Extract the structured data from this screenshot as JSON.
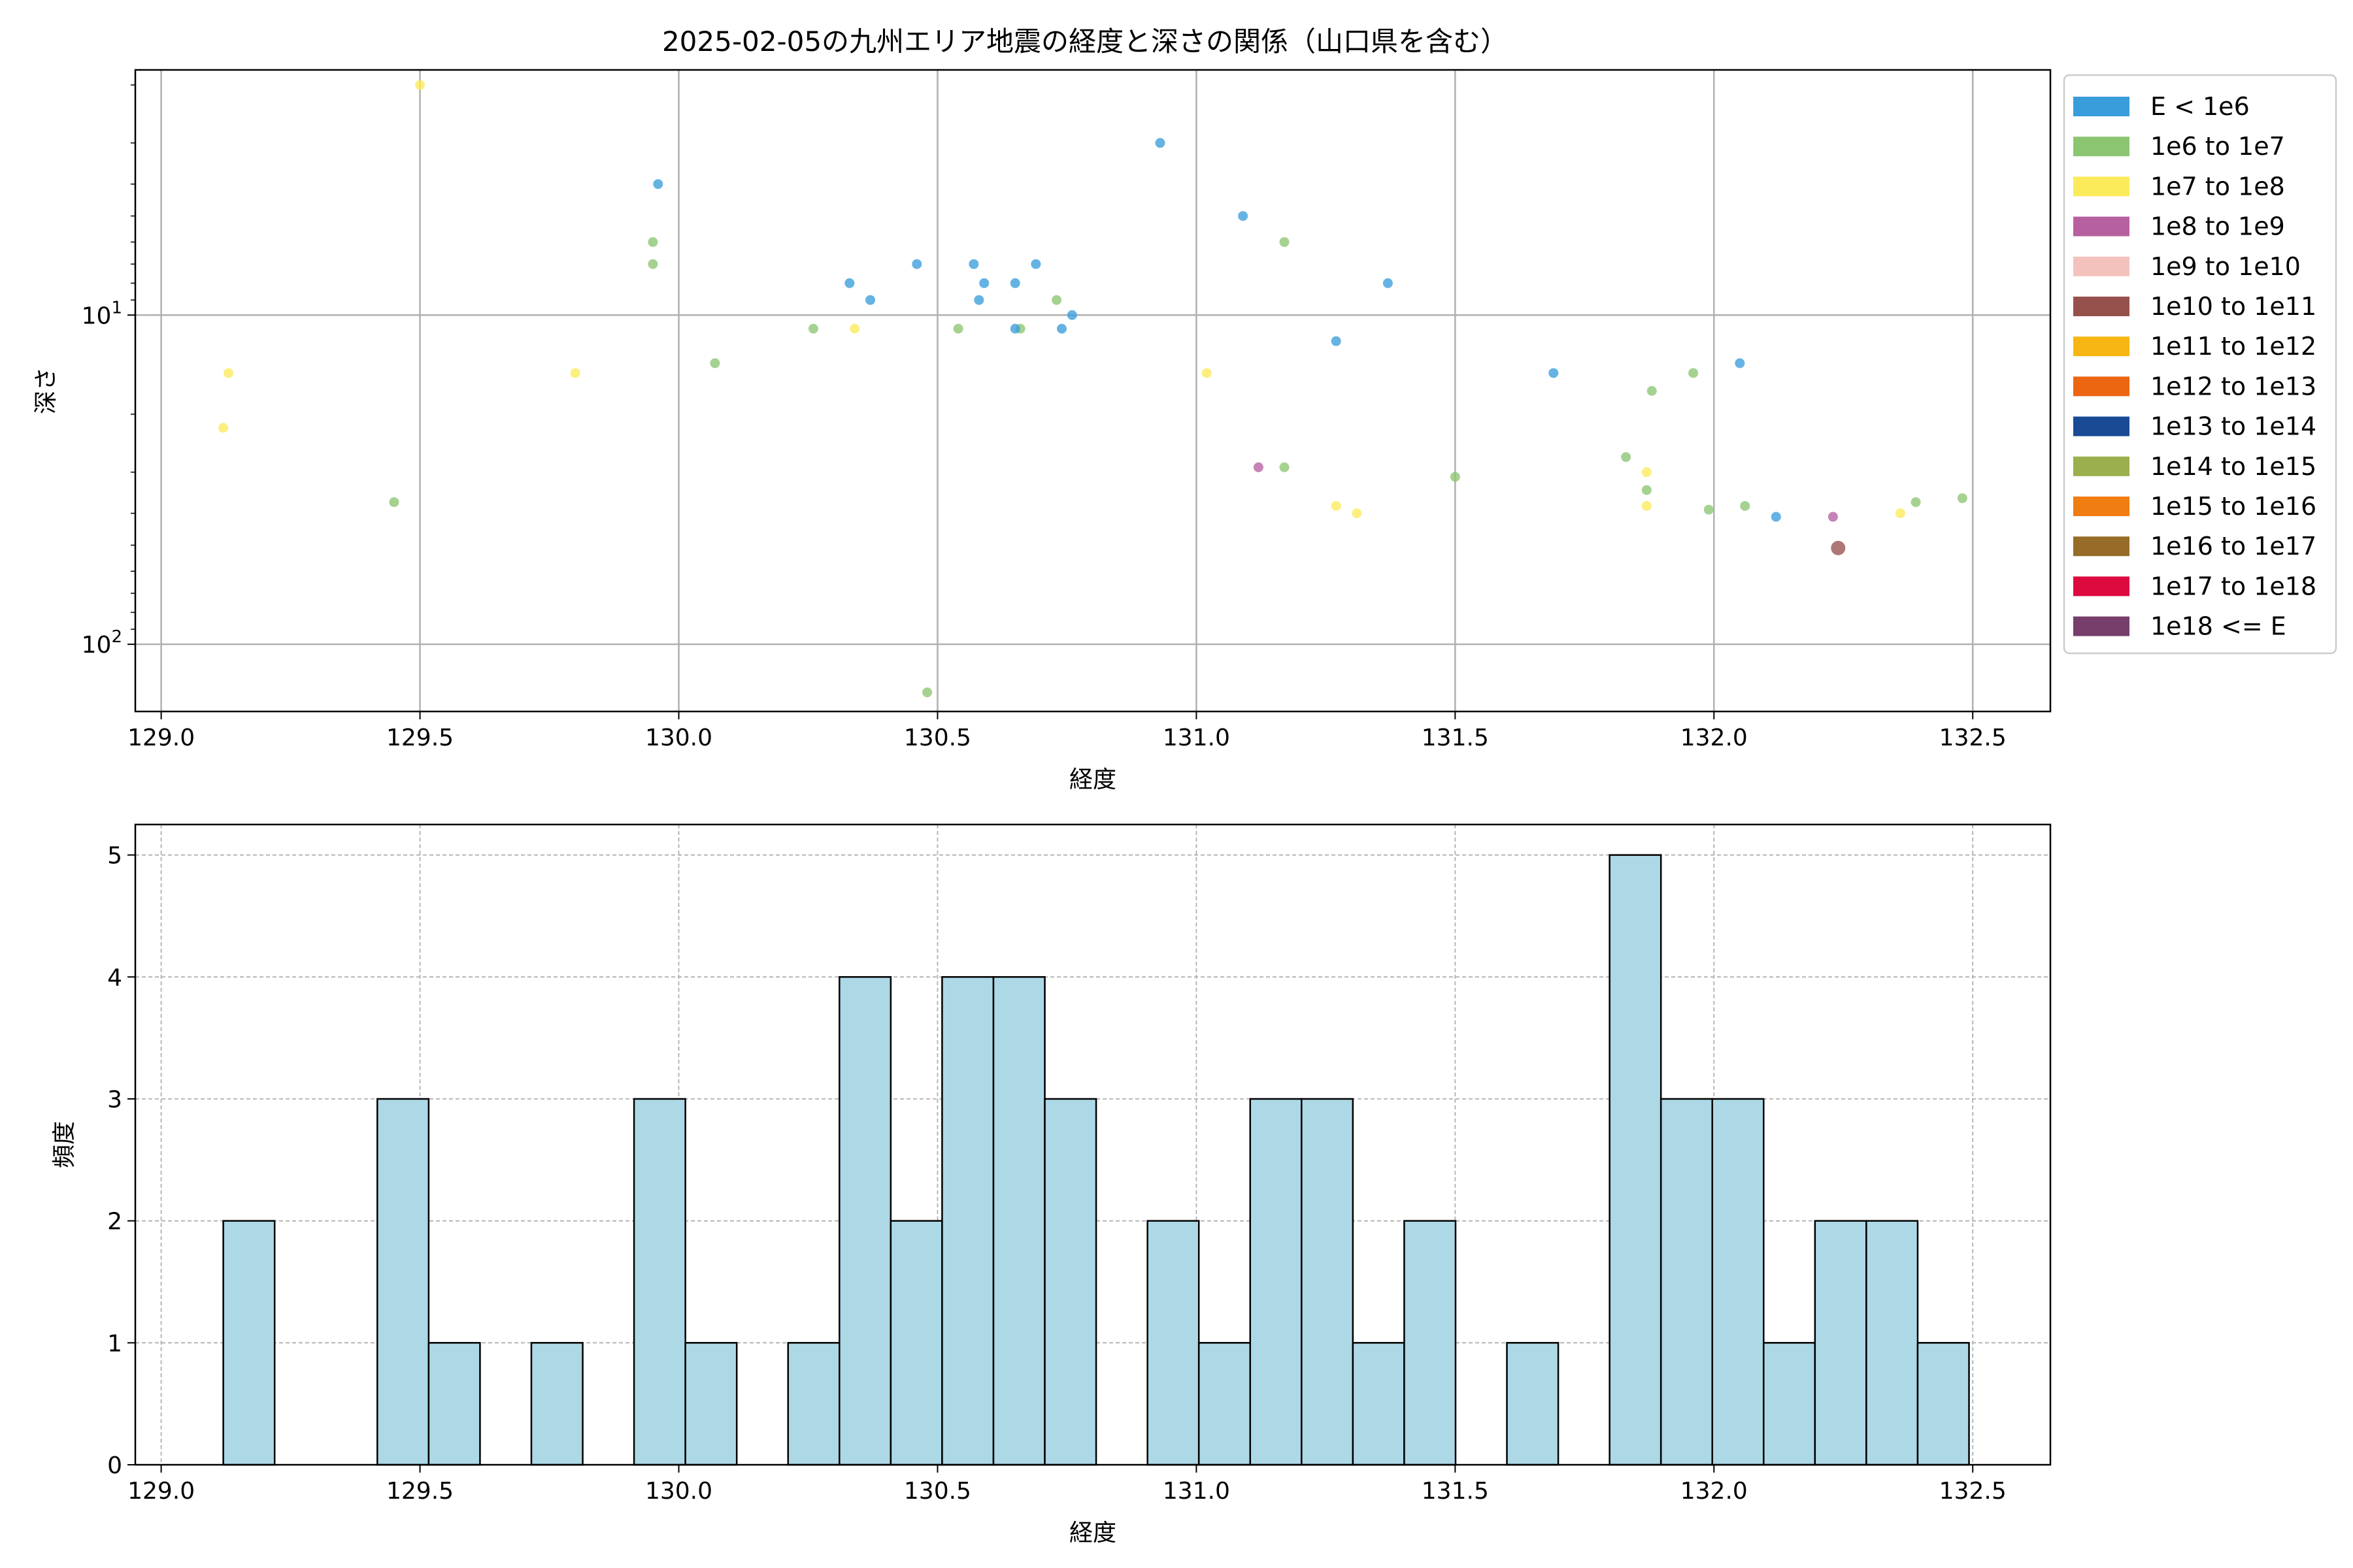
{
  "chart_data": [
    {
      "type": "scatter",
      "title": "2025-02-05の九州エリア地震の経度と深さの関係（山口県を含む）",
      "xlabel": "経度",
      "ylabel": "深さ",
      "xlim": [
        128.95,
        132.65
      ],
      "ylim": [
        160,
        1.8
      ],
      "yscale": "log",
      "y_inverted": true,
      "grid": true,
      "legend_position": "outside-right",
      "xticks": [
        "129.0",
        "129.5",
        "130.0",
        "130.5",
        "131.0",
        "131.5",
        "132.0",
        "132.5"
      ],
      "yticks": [
        {
          "value": 10,
          "base": "10",
          "exp": "1"
        },
        {
          "value": 100,
          "base": "10",
          "exp": "2"
        }
      ],
      "legend": [
        {
          "label": "E < 1e6",
          "color": "#3a9ddb"
        },
        {
          "label": "1e6 to 1e7",
          "color": "#8cc572"
        },
        {
          "label": "1e7 to 1e8",
          "color": "#fbeb5b"
        },
        {
          "label": "1e8 to 1e9",
          "color": "#b660a0"
        },
        {
          "label": "1e9 to 1e10",
          "color": "#f4c2bd"
        },
        {
          "label": "1e10 to 1e11",
          "color": "#97514d"
        },
        {
          "label": "1e11 to 1e12",
          "color": "#f7b613"
        },
        {
          "label": "1e12 to 1e13",
          "color": "#ec6511"
        },
        {
          "label": "1e13 to 1e14",
          "color": "#1a4a94"
        },
        {
          "label": "1e14 to 1e15",
          "color": "#9aaf4e"
        },
        {
          "label": "1e15 to 1e16",
          "color": "#ef7d12"
        },
        {
          "label": "1e16 to 1e17",
          "color": "#976b28"
        },
        {
          "label": "1e17 to 1e18",
          "color": "#dd0a40"
        },
        {
          "label": "1e18 <= E",
          "color": "#773e6b"
        }
      ],
      "points": [
        {
          "x": 129.13,
          "y": 15,
          "c": 2
        },
        {
          "x": 129.12,
          "y": 22,
          "c": 2
        },
        {
          "x": 129.45,
          "y": 37,
          "c": 1
        },
        {
          "x": 129.5,
          "y": 2.0,
          "c": 2
        },
        {
          "x": 129.8,
          "y": 15,
          "c": 2
        },
        {
          "x": 129.95,
          "y": 7.0,
          "c": 1
        },
        {
          "x": 129.95,
          "y": 6.0,
          "c": 1
        },
        {
          "x": 129.96,
          "y": 4.0,
          "c": 0
        },
        {
          "x": 130.07,
          "y": 14,
          "c": 1
        },
        {
          "x": 130.26,
          "y": 11,
          "c": 1
        },
        {
          "x": 130.33,
          "y": 8.0,
          "c": 0
        },
        {
          "x": 130.34,
          "y": 11,
          "c": 2
        },
        {
          "x": 130.37,
          "y": 9.0,
          "c": 0
        },
        {
          "x": 130.46,
          "y": 7.0,
          "c": 0
        },
        {
          "x": 130.48,
          "y": 140,
          "c": 1
        },
        {
          "x": 130.54,
          "y": 11,
          "c": 1
        },
        {
          "x": 130.57,
          "y": 7.0,
          "c": 0
        },
        {
          "x": 130.58,
          "y": 9.0,
          "c": 0
        },
        {
          "x": 130.59,
          "y": 8.0,
          "c": 0
        },
        {
          "x": 130.65,
          "y": 8.0,
          "c": 0
        },
        {
          "x": 130.66,
          "y": 11,
          "c": 1
        },
        {
          "x": 130.65,
          "y": 11,
          "c": 0
        },
        {
          "x": 130.69,
          "y": 7.0,
          "c": 0
        },
        {
          "x": 130.73,
          "y": 9.0,
          "c": 1
        },
        {
          "x": 130.74,
          "y": 11,
          "c": 0
        },
        {
          "x": 130.76,
          "y": 10,
          "c": 0
        },
        {
          "x": 130.93,
          "y": 3.0,
          "c": 0
        },
        {
          "x": 131.02,
          "y": 15,
          "c": 2
        },
        {
          "x": 131.09,
          "y": 5.0,
          "c": 0
        },
        {
          "x": 131.12,
          "y": 29,
          "c": 3
        },
        {
          "x": 131.17,
          "y": 6.0,
          "c": 1
        },
        {
          "x": 131.17,
          "y": 29,
          "c": 1
        },
        {
          "x": 131.27,
          "y": 12,
          "c": 0
        },
        {
          "x": 131.27,
          "y": 38,
          "c": 2
        },
        {
          "x": 131.31,
          "y": 40,
          "c": 2
        },
        {
          "x": 131.37,
          "y": 8.0,
          "c": 0
        },
        {
          "x": 131.5,
          "y": 31,
          "c": 1
        },
        {
          "x": 131.69,
          "y": 15,
          "c": 0
        },
        {
          "x": 131.83,
          "y": 27,
          "c": 1
        },
        {
          "x": 131.87,
          "y": 30,
          "c": 2
        },
        {
          "x": 131.87,
          "y": 34,
          "c": 1
        },
        {
          "x": 131.87,
          "y": 38,
          "c": 2
        },
        {
          "x": 131.88,
          "y": 17,
          "c": 1
        },
        {
          "x": 131.96,
          "y": 15,
          "c": 1
        },
        {
          "x": 131.99,
          "y": 39,
          "c": 1
        },
        {
          "x": 132.05,
          "y": 14,
          "c": 0
        },
        {
          "x": 132.06,
          "y": 38,
          "c": 1
        },
        {
          "x": 132.12,
          "y": 41,
          "c": 0
        },
        {
          "x": 132.23,
          "y": 41,
          "c": 3
        },
        {
          "x": 132.24,
          "y": 51,
          "c": 5,
          "big": true
        },
        {
          "x": 132.36,
          "y": 40,
          "c": 2
        },
        {
          "x": 132.39,
          "y": 37,
          "c": 1
        },
        {
          "x": 132.48,
          "y": 36,
          "c": 1
        }
      ]
    },
    {
      "type": "bar",
      "title": "",
      "xlabel": "経度",
      "ylabel": "頻度",
      "xlim": [
        128.95,
        132.65
      ],
      "ylim": [
        0,
        5.25
      ],
      "grid": true,
      "bar_color": "#add8e6",
      "xticks": [
        "129.0",
        "129.5",
        "130.0",
        "130.5",
        "131.0",
        "131.5",
        "132.0",
        "132.5"
      ],
      "yticks": [
        "0",
        "1",
        "2",
        "3",
        "4",
        "5"
      ],
      "bin_start": 129.12,
      "bin_width": 0.0992,
      "counts": [
        2,
        0,
        0,
        3,
        1,
        0,
        1,
        0,
        3,
        1,
        0,
        1,
        4,
        2,
        4,
        4,
        3,
        0,
        2,
        1,
        3,
        3,
        1,
        2,
        0,
        1,
        0,
        5,
        3,
        3,
        1,
        2,
        2,
        1
      ]
    }
  ]
}
